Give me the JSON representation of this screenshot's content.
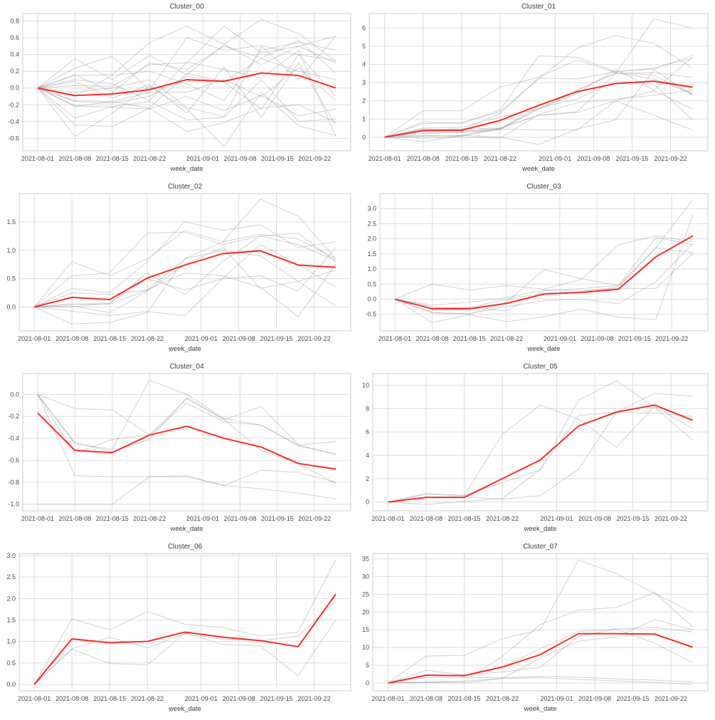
{
  "figure": {
    "background": "#ffffff"
  },
  "style": {
    "mean_color": "#ff2222",
    "member_color": "#9a9a9a",
    "member_opacity": 0.45,
    "grid_color": "#dcdcdc",
    "spine_color": "#cccccc",
    "tick_text_color": "#4a4a4a",
    "title_text_color": "#3c3c3c"
  },
  "x_axis": {
    "label": "week_date",
    "xlim": [
      -2.8,
      58.8
    ],
    "point_days": [
      0,
      7,
      14,
      21,
      28,
      35,
      42,
      49,
      56
    ],
    "point_dates": [
      "2021-08-01",
      "2021-08-08",
      "2021-08-15",
      "2021-08-22",
      "2021-08-29",
      "2021-09-05",
      "2021-09-12",
      "2021-09-19",
      "2021-09-26"
    ],
    "tick_days": [
      0,
      7,
      14,
      21,
      31,
      38,
      45,
      52
    ],
    "tick_labels": [
      "2021-08-01",
      "2021-08-08",
      "2021-08-15",
      "2021-08-22",
      "2021-09-01",
      "2021-09-08",
      "2021-09-15",
      "2021-09-22"
    ]
  },
  "chart_data": [
    {
      "type": "line",
      "title": "Cluster_00",
      "ylim": [
        -0.75,
        0.89
      ],
      "ytick_values": [
        -0.6,
        -0.4,
        -0.2,
        0.0,
        0.2,
        0.4,
        0.6,
        0.8
      ],
      "ytick_labels": [
        "-0.6",
        "-0.4",
        "-0.2",
        "0.0",
        "0.2",
        "0.4",
        "0.6",
        "0.8"
      ],
      "mean_series": [
        0.0,
        -0.09,
        -0.07,
        -0.02,
        0.1,
        0.08,
        0.18,
        0.15,
        0.0
      ],
      "member_series": [
        [
          0,
          0.35,
          0.1,
          0.39,
          0.16,
          0.52,
          0.28,
          0.5,
          0.3
        ],
        [
          0,
          0.24,
          0.38,
          -0.02,
          0.6,
          0.45,
          0.51,
          0.4,
          0.33
        ],
        [
          0,
          0.15,
          0.16,
          0.54,
          0.74,
          0.52,
          0.82,
          0.65,
          0.32
        ],
        [
          0,
          0.03,
          0.02,
          0.28,
          0.3,
          0.74,
          0.42,
          0.5,
          0.62
        ],
        [
          0,
          0.16,
          -0.05,
          0.3,
          0.22,
          0.5,
          0.36,
          0.57,
          0.18
        ],
        [
          0,
          -0.15,
          -0.16,
          -0.24,
          0.17,
          0.08,
          0.35,
          0.2,
          0.1
        ],
        [
          0,
          -0.16,
          -0.18,
          -0.1,
          0.14,
          0.07,
          -0.25,
          0.4,
          -0.1
        ],
        [
          0,
          -0.22,
          -0.16,
          -0.05,
          -0.05,
          0.1,
          -0.1,
          0.24,
          -0.15
        ],
        [
          0,
          -0.21,
          -0.23,
          -0.25,
          -0.1,
          -0.27,
          -0.09,
          -0.33,
          -0.25
        ],
        [
          0,
          -0.36,
          -0.22,
          -0.16,
          -0.38,
          -0.35,
          0.1,
          -0.4,
          -0.37
        ],
        [
          0,
          -0.44,
          -0.46,
          -0.24,
          -0.52,
          -0.41,
          -0.24,
          -0.2,
          -0.41
        ],
        [
          0,
          -0.58,
          -0.3,
          0.02,
          -0.25,
          -0.7,
          -0.05,
          -0.45,
          -0.57
        ],
        [
          0,
          0.1,
          0.05,
          -0.15,
          0.31,
          0.22,
          0.12,
          0.45,
          -0.58
        ],
        [
          0,
          -0.05,
          0.0,
          0.1,
          -0.23,
          -0.34,
          0.5,
          0.1,
          0.62
        ],
        [
          0,
          0.08,
          -0.12,
          0.04,
          -0.3,
          0.25,
          -0.35,
          0.3,
          -0.44
        ],
        [
          0,
          -0.1,
          0.15,
          0.2,
          0.05,
          -0.15,
          0.45,
          0.55,
          0.45
        ]
      ]
    },
    {
      "type": "line",
      "title": "Cluster_01",
      "ylim": [
        -0.75,
        6.8
      ],
      "ytick_values": [
        0,
        1,
        2,
        3,
        4,
        5,
        6
      ],
      "ytick_labels": [
        "0",
        "1",
        "2",
        "3",
        "4",
        "5",
        "6"
      ],
      "mean_series": [
        0,
        0.37,
        0.38,
        0.92,
        1.75,
        2.5,
        2.95,
        3.08,
        2.75
      ],
      "member_series": [
        [
          0,
          1.45,
          1.45,
          2.75,
          3.3,
          4.25,
          3.55,
          3.2,
          2.4
        ],
        [
          0,
          0.85,
          0.75,
          1.5,
          4.47,
          4.4,
          3.6,
          3.75,
          4.5
        ],
        [
          0,
          0.75,
          0.8,
          1.4,
          3.2,
          4.9,
          5.6,
          5.15,
          3.8
        ],
        [
          0,
          0.4,
          0.45,
          0.5,
          1.2,
          1.4,
          3.5,
          6.5,
          6.0
        ],
        [
          0,
          0.45,
          0.4,
          1.3,
          3.25,
          3.2,
          3.6,
          3.8,
          4.35
        ],
        [
          0,
          0.35,
          0.35,
          0.45,
          1.7,
          2.6,
          3.5,
          3.55,
          3.3
        ],
        [
          0,
          0.1,
          0.05,
          0.45,
          1.55,
          2.4,
          3.75,
          2.6,
          4.4
        ],
        [
          0,
          -0.05,
          0.0,
          -0.05,
          1.25,
          1.9,
          2.1,
          2.3,
          2.6
        ],
        [
          0,
          -0.25,
          0.1,
          0.0,
          -0.4,
          0.45,
          0.95,
          3.7,
          2.3
        ],
        [
          0,
          0.3,
          0.3,
          0.45,
          0.4,
          0.4,
          2.0,
          2.55,
          1.55
        ],
        [
          0,
          0.5,
          0.55,
          1.1,
          1.55,
          2.55,
          3.55,
          3.4,
          2.35
        ],
        [
          0,
          0.2,
          0.25,
          0.4,
          1.6,
          2.1,
          3.1,
          2.9,
          0.95
        ],
        [
          0,
          0.05,
          0.1,
          0.5,
          1.2,
          1.35,
          2.0,
          1.2,
          0.4
        ]
      ]
    },
    {
      "type": "line",
      "title": "Cluster_02",
      "ylim": [
        -0.42,
        2.0
      ],
      "ytick_values": [
        0.0,
        0.5,
        1.0,
        1.5
      ],
      "ytick_labels": [
        "0.0",
        "0.5",
        "1.0",
        "1.5"
      ],
      "mean_series": [
        0,
        0.17,
        0.13,
        0.51,
        0.74,
        0.94,
        0.99,
        0.74,
        0.7
      ],
      "member_series": [
        [
          0,
          0.8,
          0.55,
          0.85,
          1.35,
          1.15,
          1.9,
          1.6,
          0.85
        ],
        [
          0,
          0.55,
          0.6,
          1.3,
          1.32,
          1.1,
          1.25,
          1.3,
          0.8
        ],
        [
          0,
          0.33,
          0.25,
          0.8,
          1.5,
          1.35,
          1.45,
          1.05,
          1.15
        ],
        [
          0,
          0.25,
          0.22,
          0.3,
          0.85,
          1.15,
          1.28,
          1.2,
          0.85
        ],
        [
          0,
          0.05,
          0.06,
          0.6,
          0.22,
          0.8,
          1.25,
          1.1,
          0.82
        ],
        [
          0,
          0.02,
          -0.1,
          0.28,
          0.75,
          1.05,
          0.33,
          0.45,
          0.65
        ],
        [
          0,
          -0.07,
          -0.15,
          -0.08,
          -0.15,
          0.5,
          0.55,
          0.28,
          1.05
        ],
        [
          0,
          -0.3,
          -0.27,
          -0.1,
          0.85,
          1.0,
          0.9,
          0.45,
          0.02
        ],
        [
          0,
          0.05,
          0.05,
          0.3,
          0.6,
          0.55,
          0.35,
          -0.17,
          0.75
        ],
        [
          0,
          0.0,
          0.07,
          0.5,
          0.3,
          0.5,
          1.1,
          0.75,
          0.35
        ]
      ]
    },
    {
      "type": "line",
      "title": "Cluster_03",
      "ylim": [
        -1.05,
        3.5
      ],
      "ytick_values": [
        -0.5,
        0.0,
        0.5,
        1.0,
        1.5,
        2.0,
        2.5,
        3.0
      ],
      "ytick_labels": [
        "-0.5",
        "0.0",
        "0.5",
        "1.0",
        "1.5",
        "2.0",
        "2.5",
        "3.0"
      ],
      "mean_series": [
        0,
        -0.32,
        -0.32,
        -0.14,
        0.17,
        0.22,
        0.33,
        1.4,
        2.1
      ],
      "member_series": [
        [
          0,
          0.5,
          0.3,
          0.45,
          0.33,
          0.65,
          1.8,
          2.1,
          1.9
        ],
        [
          0,
          -0.2,
          -0.1,
          0.05,
          0.3,
          0.35,
          0.45,
          2.05,
          1.8
        ],
        [
          0,
          -0.45,
          -0.5,
          -0.1,
          0.98,
          0.68,
          0.45,
          1.7,
          1.55
        ],
        [
          0,
          -0.3,
          -0.28,
          0.0,
          0.2,
          0.25,
          0.4,
          1.7,
          3.3
        ],
        [
          0,
          -0.78,
          -0.52,
          -0.75,
          -0.58,
          -0.33,
          -0.6,
          -0.68,
          2.8
        ],
        [
          0,
          -0.45,
          -0.48,
          -0.25,
          -0.05,
          0.0,
          -0.15,
          0.58,
          1.85
        ],
        [
          0,
          -0.25,
          -0.3,
          -0.38,
          0.28,
          0.3,
          0.35,
          0.35,
          1.52
        ]
      ]
    },
    {
      "type": "line",
      "title": "Cluster_04",
      "ylim": [
        -1.06,
        0.19
      ],
      "ytick_values": [
        -1.0,
        -0.8,
        -0.6,
        -0.4,
        -0.2,
        0.0
      ],
      "ytick_labels": [
        "-1.0",
        "-0.8",
        "-0.6",
        "-0.4",
        "-0.2",
        "0.0"
      ],
      "mean_series": [
        -0.17,
        -0.51,
        -0.53,
        -0.37,
        -0.29,
        -0.4,
        -0.48,
        -0.63,
        -0.68
      ],
      "member_series": [
        [
          0,
          -0.45,
          -0.5,
          0.13,
          0.0,
          -0.22,
          -0.28,
          -0.46,
          -0.43
        ],
        [
          0,
          -0.54,
          -0.41,
          -0.37,
          -0.04,
          -0.23,
          -0.11,
          -0.46,
          -0.55
        ],
        [
          0,
          -0.13,
          -0.14,
          -0.37,
          -0.08,
          -0.25,
          -0.28,
          -0.47,
          -0.54
        ],
        [
          -1.0,
          -1.0,
          -1.0,
          -0.75,
          -0.75,
          -0.83,
          -0.69,
          -0.71,
          -0.8
        ],
        [
          0,
          -0.74,
          -0.75,
          -0.75,
          -0.74,
          -0.83,
          -0.86,
          -0.9,
          -0.95
        ],
        [
          0,
          -0.44,
          -0.52,
          -0.41,
          -0.03,
          -0.23,
          -0.51,
          -0.63,
          -0.81
        ]
      ]
    },
    {
      "type": "line",
      "title": "Cluster_05",
      "ylim": [
        -0.75,
        11.0
      ],
      "ytick_values": [
        0,
        2,
        4,
        6,
        8,
        10
      ],
      "ytick_labels": [
        "0",
        "2",
        "4",
        "6",
        "8",
        "10"
      ],
      "mean_series": [
        0,
        0.4,
        0.4,
        2.0,
        3.6,
        6.5,
        7.7,
        8.3,
        7.0
      ],
      "member_series": [
        [
          0,
          0.75,
          0.55,
          5.8,
          8.3,
          7.1,
          4.7,
          8.2,
          6.3
        ],
        [
          0,
          -0.2,
          0.05,
          0.3,
          2.8,
          8.7,
          10.4,
          8.1,
          5.3
        ],
        [
          0,
          0.4,
          0.45,
          0.25,
          0.55,
          2.8,
          7.7,
          9.3,
          9.05
        ],
        [
          0,
          0.65,
          0.55,
          1.65,
          2.75,
          7.4,
          7.7,
          7.6,
          7.35
        ]
      ]
    },
    {
      "type": "line",
      "title": "Cluster_06",
      "ylim": [
        -0.15,
        3.05
      ],
      "ytick_values": [
        0.0,
        0.5,
        1.0,
        1.5,
        2.0,
        2.5,
        3.0
      ],
      "ytick_labels": [
        "0.0",
        "0.5",
        "1.0",
        "1.5",
        "2.0",
        "2.5",
        "3.0"
      ],
      "mean_series": [
        0,
        1.06,
        0.97,
        1.0,
        1.22,
        1.1,
        1.02,
        0.88,
        2.1
      ],
      "member_series": [
        [
          0,
          1.53,
          1.27,
          1.7,
          1.4,
          1.32,
          1.13,
          1.22,
          2.9
        ],
        [
          0,
          0.83,
          1.1,
          0.85,
          1.18,
          1.05,
          1.02,
          1.12,
          1.93
        ],
        [
          0,
          0.82,
          0.49,
          0.45,
          1.2,
          0.93,
          0.9,
          0.2,
          1.5
        ]
      ]
    },
    {
      "type": "line",
      "title": "Cluster_07",
      "ylim": [
        -2.2,
        36.5
      ],
      "ytick_values": [
        0,
        5,
        10,
        15,
        20,
        25,
        30,
        35
      ],
      "ytick_labels": [
        "0",
        "5",
        "10",
        "15",
        "20",
        "25",
        "30",
        "35"
      ],
      "mean_series": [
        0,
        2.2,
        2.1,
        4.5,
        8.0,
        13.9,
        13.9,
        13.8,
        10.1
      ],
      "member_series": [
        [
          0,
          7.6,
          7.8,
          12.5,
          15.0,
          34.7,
          30.8,
          25.3,
          19.9
        ],
        [
          0,
          0.3,
          0.4,
          7.5,
          16.5,
          20.5,
          21.3,
          25.5,
          15.8
        ],
        [
          0,
          2.1,
          2.0,
          4.4,
          9.7,
          14.5,
          15.2,
          15.7,
          14.4
        ],
        [
          0,
          0.2,
          0.5,
          1.3,
          7.0,
          11.8,
          13.0,
          17.9,
          15.0
        ],
        [
          0,
          1.5,
          1.7,
          1.4,
          1.9,
          1.6,
          1.2,
          0.8,
          0.3
        ],
        [
          0,
          0.1,
          0.0,
          1.3,
          1.5,
          1.0,
          0.6,
          0.2,
          -0.4
        ],
        [
          0,
          3.6,
          2.3,
          3.1,
          4.4,
          13.2,
          15.2,
          11.2,
          5.7
        ]
      ]
    }
  ]
}
